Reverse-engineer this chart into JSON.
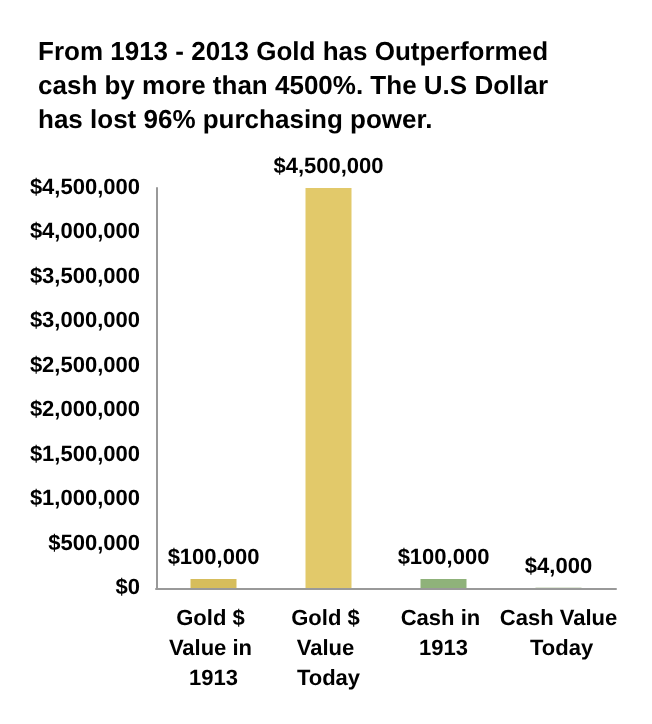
{
  "chart_data": {
    "type": "bar",
    "title": "From 1913 - 2013 Gold has Outperformed cash by more than 4500%. The U.S Dollar has lost 96% purchasing power.",
    "categories": [
      "Gold $ Value in 1913",
      "Gold $ Value Today",
      "Cash in 1913",
      "Cash Value Today"
    ],
    "values": [
      100000,
      4500000,
      100000,
      4000
    ],
    "colors": [
      "#d6bd5c",
      "#e2c96a",
      "#8fb27a",
      "#7f9e62"
    ],
    "value_labels": [
      "$100,000",
      "$4,500,000",
      "$100,000",
      "$4,000"
    ],
    "ylim": [
      0,
      4500000
    ],
    "yticks": [
      {
        "value": 0,
        "label": "$0"
      },
      {
        "value": 500000,
        "label": "$500,000"
      },
      {
        "value": 1000000,
        "label": "$1,000,000"
      },
      {
        "value": 1500000,
        "label": "$1,500,000"
      },
      {
        "value": 2000000,
        "label": "$2,000,000"
      },
      {
        "value": 2500000,
        "label": "$2,500,000"
      },
      {
        "value": 3000000,
        "label": "$3,000,000"
      },
      {
        "value": 3500000,
        "label": "$3,500,000"
      },
      {
        "value": 4000000,
        "label": "$4,000,000"
      },
      {
        "value": 4500000,
        "label": "$4,500,000"
      }
    ],
    "grid": false
  }
}
